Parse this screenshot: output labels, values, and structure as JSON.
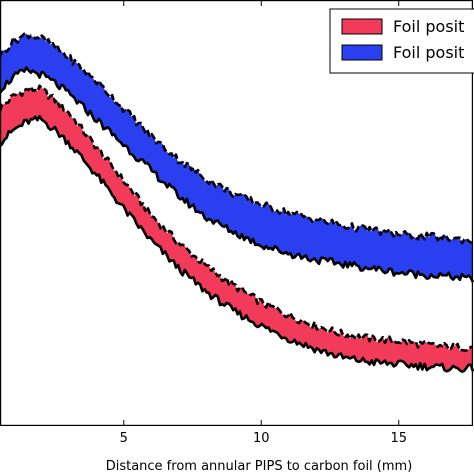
{
  "chart_data": {
    "type": "area",
    "xlabel": "Distance from annular PIPS to carbon foil (mm)",
    "ylabel": "",
    "title": "",
    "xlim": [
      0.5,
      17.7
    ],
    "ylim": [
      0,
      1
    ],
    "x_ticks": [
      5,
      10,
      15
    ],
    "x_tick_labels": [
      "5",
      "10",
      "15"
    ],
    "legend_position": "top-right",
    "series": [
      {
        "name": "Foil posit",
        "color": "#f23a5a",
        "x": [
          0.5,
          1.0,
          1.5,
          2.0,
          2.5,
          3.0,
          4.0,
          5.0,
          6.0,
          7.0,
          8.0,
          9.0,
          10.0,
          11.0,
          12.0,
          13.0,
          14.0,
          15.0,
          16.0,
          17.0,
          17.7
        ],
        "upper": [
          0.745,
          0.775,
          0.79,
          0.79,
          0.765,
          0.735,
          0.655,
          0.575,
          0.495,
          0.43,
          0.375,
          0.33,
          0.29,
          0.26,
          0.235,
          0.215,
          0.205,
          0.2,
          0.19,
          0.185,
          0.185
        ],
        "lower": [
          0.665,
          0.695,
          0.715,
          0.72,
          0.695,
          0.665,
          0.59,
          0.51,
          0.435,
          0.37,
          0.315,
          0.27,
          0.235,
          0.205,
          0.18,
          0.16,
          0.15,
          0.145,
          0.14,
          0.135,
          0.135
        ]
      },
      {
        "name": "Foil posit",
        "color": "#2a3ff0",
        "x": [
          0.5,
          1.0,
          1.5,
          2.0,
          2.5,
          3.0,
          4.0,
          5.0,
          6.0,
          7.0,
          8.0,
          9.0,
          10.0,
          11.0,
          12.0,
          13.0,
          14.0,
          15.0,
          16.0,
          17.0,
          17.7
        ],
        "upper": [
          0.87,
          0.905,
          0.92,
          0.91,
          0.89,
          0.865,
          0.81,
          0.745,
          0.68,
          0.625,
          0.58,
          0.545,
          0.52,
          0.5,
          0.485,
          0.47,
          0.46,
          0.45,
          0.445,
          0.44,
          0.435
        ],
        "lower": [
          0.79,
          0.82,
          0.835,
          0.825,
          0.805,
          0.78,
          0.72,
          0.66,
          0.6,
          0.54,
          0.49,
          0.455,
          0.425,
          0.405,
          0.39,
          0.38,
          0.37,
          0.36,
          0.355,
          0.35,
          0.345
        ]
      }
    ]
  }
}
